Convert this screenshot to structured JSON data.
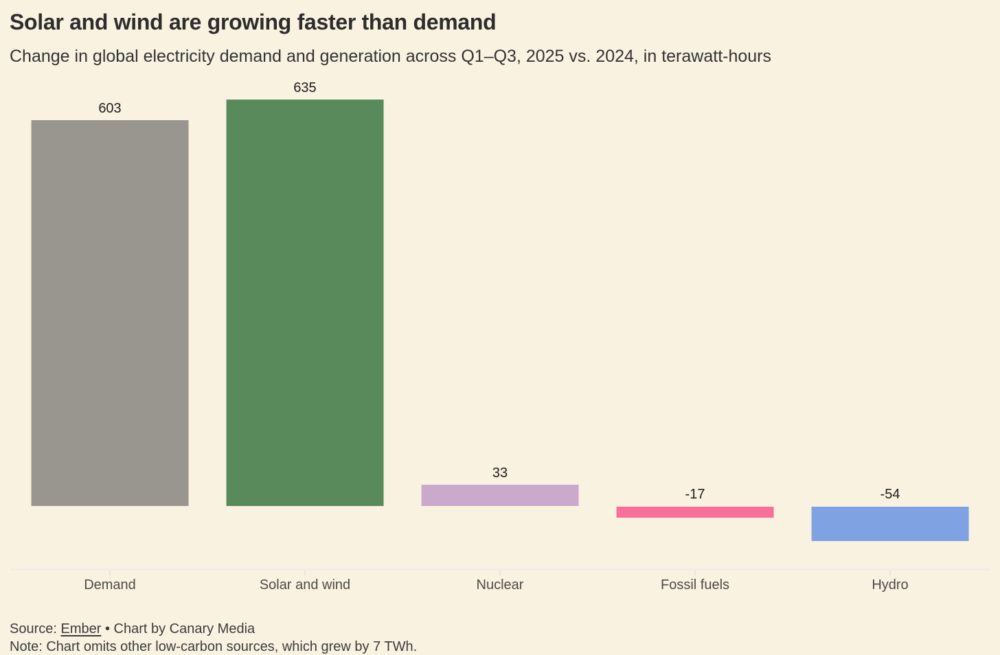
{
  "chart_data": {
    "type": "bar",
    "title": "Solar and wind are growing faster than demand",
    "subtitle": "Change in global electricity demand and generation across Q1–Q3, 2025 vs. 2024, in terawatt-hours",
    "categories": [
      "Demand",
      "Solar and wind",
      "Nuclear",
      "Fossil fuels",
      "Hydro"
    ],
    "values": [
      603,
      635,
      33,
      -17,
      -54
    ],
    "value_labels": [
      "603",
      "635",
      "33",
      "-17",
      "-54"
    ],
    "bar_colors": [
      "#999690",
      "#588a5c",
      "#cba9cc",
      "#f7709a",
      "#7fa2e2"
    ],
    "unit": "terawatt-hours",
    "xlabel": "",
    "ylabel": "",
    "ylim": [
      -54,
      635
    ],
    "baseline": 0,
    "grid": false,
    "legend": false,
    "value_labels_position": "above-bar-or-baseline"
  },
  "footer": {
    "source_prefix": "Source: ",
    "source_link_label": "Ember",
    "source_suffix": " • Chart by Canary Media",
    "note": "Note: Chart omits other low-carbon sources, which grew by 7 TWh."
  },
  "colors": {
    "background": "#faf2e0",
    "title_text": "#2d2d2d",
    "subtitle_text": "#333333",
    "axis_line": "#eeece5",
    "category_label_text": "#4a4a45",
    "value_label_text": "#1c1c1c",
    "footer_text": "#3b3b3b"
  }
}
